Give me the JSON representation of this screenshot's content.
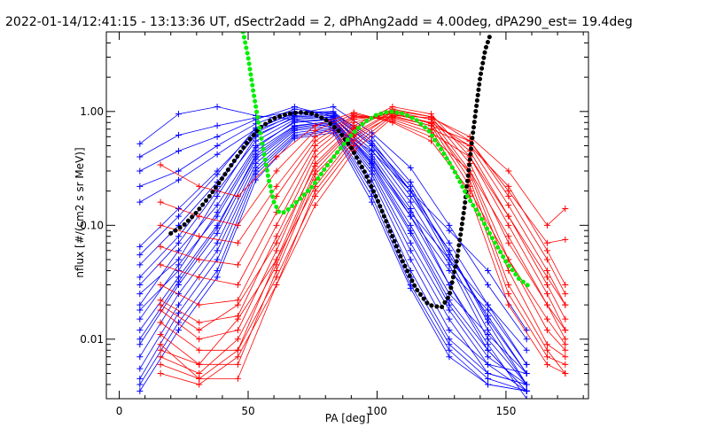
{
  "chart_data": {
    "type": "line",
    "title": "2022-01-14/12:41:15 - 13:13:36 UT, dSectr2add = 2, dPhAng2add = 4.00deg, dPA290_est=  19.4deg",
    "xlabel": "PA [deg]",
    "ylabel": "nflux [#/(cm2 s sr MeV)]",
    "xlim": [
      -5,
      182
    ],
    "ylim": [
      0.003,
      5.0
    ],
    "yscale": "log",
    "xticks": [
      0,
      50,
      100,
      150
    ],
    "xtick_labels": [
      "0",
      "50",
      "100",
      "150"
    ],
    "yticks": [
      0.01,
      0.1,
      1.0
    ],
    "ytick_labels": [
      "0.01",
      "0.10",
      "1.00"
    ],
    "grid": false,
    "legend": "none",
    "colors": {
      "blue": "#0000ff",
      "red": "#ff0000",
      "black": "#000000",
      "green": "#00ee00"
    },
    "blue_pa": [
      8,
      23,
      38,
      53,
      68,
      83,
      98,
      113,
      128,
      143,
      158
    ],
    "red_pa": [
      16,
      31,
      46,
      61,
      76,
      91,
      106,
      121,
      136,
      151,
      166,
      173
    ],
    "fits": {
      "black_fit": {
        "x": [
          20,
          25,
          30,
          35,
          40,
          45,
          50,
          55,
          60,
          65,
          70,
          75,
          80,
          85,
          90,
          95,
          100,
          105,
          110,
          115,
          120,
          125,
          128,
          131,
          134,
          137,
          140,
          142,
          144
        ],
        "y": [
          0.085,
          0.1,
          0.13,
          0.18,
          0.26,
          0.38,
          0.55,
          0.73,
          0.87,
          0.95,
          0.98,
          0.96,
          0.85,
          0.68,
          0.48,
          0.3,
          0.17,
          0.09,
          0.048,
          0.028,
          0.02,
          0.019,
          0.024,
          0.05,
          0.15,
          0.6,
          2.0,
          3.5,
          4.8
        ]
      },
      "green_fit": {
        "x": [
          48,
          50,
          52,
          54,
          56,
          58,
          60,
          62,
          64,
          66,
          70,
          75,
          80,
          85,
          90,
          95,
          100,
          105,
          110,
          115,
          120,
          125,
          130,
          135,
          140,
          145,
          150,
          155,
          160
        ],
        "y": [
          5.0,
          3.0,
          1.5,
          0.8,
          0.45,
          0.25,
          0.16,
          0.13,
          0.13,
          0.14,
          0.17,
          0.22,
          0.32,
          0.45,
          0.62,
          0.8,
          0.94,
          1.0,
          0.96,
          0.85,
          0.68,
          0.46,
          0.3,
          0.18,
          0.12,
          0.075,
          0.048,
          0.034,
          0.028
        ]
      }
    },
    "series": [
      {
        "color": "blue",
        "values": [
          0.52,
          0.95,
          1.1,
          0.92,
          0.85,
          0.72,
          0.45,
          0.2,
          0.09,
          0.04,
          0.012
        ]
      },
      {
        "color": "blue",
        "values": [
          0.4,
          0.62,
          0.75,
          0.88,
          1.0,
          0.82,
          0.38,
          0.13,
          0.05,
          0.02,
          0.008
        ]
      },
      {
        "color": "blue",
        "values": [
          0.3,
          0.45,
          0.6,
          0.85,
          1.1,
          0.9,
          0.4,
          0.12,
          0.04,
          0.018,
          0.006
        ]
      },
      {
        "color": "blue",
        "values": [
          0.22,
          0.3,
          0.5,
          0.78,
          1.05,
          0.95,
          0.5,
          0.18,
          0.06,
          0.015,
          0.005
        ]
      },
      {
        "color": "blue",
        "values": [
          0.16,
          0.25,
          0.42,
          0.7,
          0.98,
          1.0,
          0.55,
          0.2,
          0.05,
          0.012,
          0.004
        ]
      },
      {
        "color": "blue",
        "values": [
          0.065,
          0.14,
          0.3,
          0.68,
          0.92,
          0.95,
          0.6,
          0.24,
          0.07,
          0.02,
          0.006
        ]
      },
      {
        "color": "blue",
        "values": [
          0.045,
          0.1,
          0.24,
          0.62,
          0.88,
          0.88,
          0.46,
          0.16,
          0.045,
          0.01,
          0.004
        ]
      },
      {
        "color": "blue",
        "values": [
          0.03,
          0.07,
          0.2,
          0.55,
          0.85,
          0.9,
          0.42,
          0.14,
          0.03,
          0.008,
          0.0035
        ]
      },
      {
        "color": "blue",
        "values": [
          0.02,
          0.06,
          0.15,
          0.5,
          0.8,
          0.85,
          0.35,
          0.1,
          0.025,
          0.011,
          0.005
        ]
      },
      {
        "color": "blue",
        "values": [
          0.015,
          0.045,
          0.12,
          0.45,
          0.75,
          0.82,
          0.32,
          0.085,
          0.02,
          0.007,
          0.004
        ]
      },
      {
        "color": "blue",
        "values": [
          0.012,
          0.035,
          0.1,
          0.4,
          0.72,
          0.8,
          0.3,
          0.07,
          0.018,
          0.006,
          0.0035
        ]
      },
      {
        "color": "blue",
        "values": [
          0.009,
          0.03,
          0.085,
          0.38,
          0.7,
          0.78,
          0.28,
          0.06,
          0.015,
          0.005,
          0.004
        ]
      },
      {
        "color": "blue",
        "values": [
          0.007,
          0.025,
          0.07,
          0.35,
          0.68,
          0.75,
          0.25,
          0.05,
          0.012,
          0.006,
          0.005
        ]
      },
      {
        "color": "blue",
        "values": [
          0.0055,
          0.02,
          0.06,
          0.32,
          0.65,
          0.72,
          0.22,
          0.04,
          0.01,
          0.005,
          0.004
        ]
      },
      {
        "color": "blue",
        "values": [
          0.0045,
          0.017,
          0.05,
          0.3,
          0.62,
          0.7,
          0.2,
          0.035,
          0.009,
          0.0045,
          0.0035
        ]
      },
      {
        "color": "blue",
        "values": [
          0.004,
          0.014,
          0.04,
          0.28,
          0.6,
          0.68,
          0.18,
          0.03,
          0.008,
          0.004,
          0.0035
        ]
      },
      {
        "color": "blue",
        "values": [
          0.0035,
          0.012,
          0.035,
          0.25,
          0.58,
          0.65,
          0.16,
          0.028,
          0.007,
          0.004,
          0.0035
        ]
      },
      {
        "color": "blue",
        "values": [
          0.025,
          0.05,
          0.18,
          0.6,
          0.9,
          0.92,
          0.5,
          0.2,
          0.06,
          0.014,
          0.004
        ]
      },
      {
        "color": "blue",
        "values": [
          0.035,
          0.08,
          0.22,
          0.65,
          0.95,
          1.1,
          0.65,
          0.32,
          0.1,
          0.03,
          0.01
        ]
      },
      {
        "color": "blue",
        "values": [
          0.018,
          0.04,
          0.13,
          0.48,
          0.82,
          0.86,
          0.36,
          0.12,
          0.03,
          0.009,
          0.003
        ]
      },
      {
        "color": "blue",
        "values": [
          0.055,
          0.12,
          0.28,
          0.72,
          0.96,
          0.98,
          0.52,
          0.22,
          0.055,
          0.016,
          0.005
        ]
      },
      {
        "color": "blue",
        "values": [
          0.01,
          0.032,
          0.095,
          0.42,
          0.74,
          0.82,
          0.34,
          0.09,
          0.022,
          0.008,
          0.0035
        ]
      },
      {
        "color": "red",
        "values": [
          0.009,
          0.0045,
          0.0045,
          0.03,
          0.2,
          0.55,
          0.95,
          0.8,
          0.25,
          0.03,
          0.008,
          0.005
        ]
      },
      {
        "color": "red",
        "values": [
          0.011,
          0.006,
          0.006,
          0.04,
          0.25,
          0.65,
          1.0,
          0.85,
          0.3,
          0.05,
          0.012,
          0.008
        ]
      },
      {
        "color": "red",
        "values": [
          0.014,
          0.008,
          0.008,
          0.05,
          0.3,
          0.7,
          1.05,
          0.9,
          0.35,
          0.07,
          0.02,
          0.01
        ]
      },
      {
        "color": "red",
        "values": [
          0.018,
          0.01,
          0.012,
          0.06,
          0.35,
          0.75,
          1.1,
          0.95,
          0.4,
          0.1,
          0.025,
          0.012
        ]
      },
      {
        "color": "red",
        "values": [
          0.022,
          0.014,
          0.016,
          0.08,
          0.4,
          0.8,
          1.0,
          0.85,
          0.45,
          0.12,
          0.03,
          0.015
        ]
      },
      {
        "color": "red",
        "values": [
          0.03,
          0.02,
          0.022,
          0.1,
          0.45,
          0.85,
          0.95,
          0.8,
          0.5,
          0.15,
          0.04,
          0.02
        ]
      },
      {
        "color": "red",
        "values": [
          0.045,
          0.035,
          0.03,
          0.13,
          0.5,
          0.88,
          0.9,
          0.75,
          0.55,
          0.18,
          0.05,
          0.025
        ]
      },
      {
        "color": "red",
        "values": [
          0.065,
          0.05,
          0.045,
          0.18,
          0.55,
          0.9,
          0.88,
          0.7,
          0.5,
          0.22,
          0.06,
          0.03
        ]
      },
      {
        "color": "red",
        "values": [
          0.1,
          0.08,
          0.07,
          0.22,
          0.6,
          0.92,
          0.85,
          0.65,
          0.4,
          0.12,
          0.035,
          0.02
        ]
      },
      {
        "color": "red",
        "values": [
          0.16,
          0.12,
          0.1,
          0.3,
          0.68,
          0.95,
          0.82,
          0.6,
          0.3,
          0.08,
          0.02,
          0.012
        ]
      },
      {
        "color": "red",
        "values": [
          0.34,
          0.22,
          0.18,
          0.4,
          0.75,
          0.98,
          0.8,
          0.55,
          0.2,
          0.05,
          0.015,
          0.009
        ]
      },
      {
        "color": "red",
        "values": [
          0.008,
          0.006,
          0.015,
          0.05,
          0.22,
          0.6,
          0.92,
          0.88,
          0.6,
          0.3,
          0.1,
          0.14
        ]
      },
      {
        "color": "red",
        "values": [
          0.007,
          0.005,
          0.01,
          0.045,
          0.28,
          0.62,
          0.98,
          0.78,
          0.28,
          0.04,
          0.009,
          0.007
        ]
      },
      {
        "color": "red",
        "values": [
          0.006,
          0.0045,
          0.008,
          0.035,
          0.18,
          0.5,
          0.92,
          0.75,
          0.22,
          0.025,
          0.007,
          0.006
        ]
      },
      {
        "color": "red",
        "values": [
          0.005,
          0.004,
          0.007,
          0.03,
          0.15,
          0.45,
          0.88,
          0.7,
          0.18,
          0.02,
          0.006,
          0.005
        ]
      },
      {
        "color": "red",
        "values": [
          0.02,
          0.012,
          0.02,
          0.07,
          0.33,
          0.72,
          1.02,
          0.9,
          0.55,
          0.2,
          0.07,
          0.075
        ]
      }
    ]
  }
}
